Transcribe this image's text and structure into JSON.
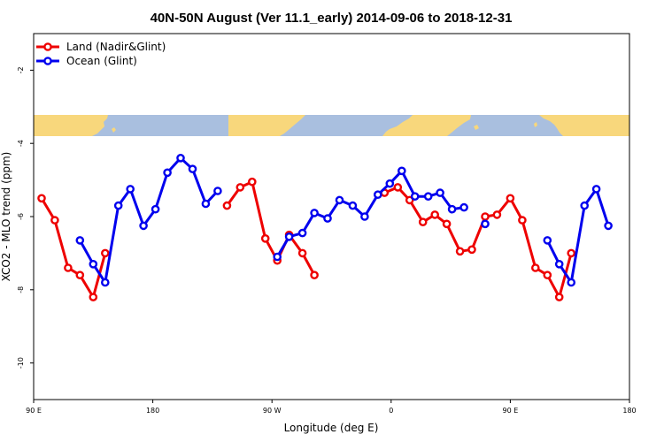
{
  "chart_data": {
    "type": "line",
    "title": "40N-50N August (Ver 11.1_early)   2014-09-06 to 2018-12-31",
    "xlabel": "Longitude (deg E)",
    "ylabel": "XCO2 - MLO trend (ppm)",
    "xlim": [
      90,
      540
    ],
    "ylim": [
      -11,
      -1
    ],
    "x_ticks": [
      {
        "value": 90,
        "label": "90 E"
      },
      {
        "value": 180,
        "label": "180"
      },
      {
        "value": 270,
        "label": "90 W"
      },
      {
        "value": 360,
        "label": "0"
      },
      {
        "value": 450,
        "label": "90 E"
      },
      {
        "value": 540,
        "label": "180"
      }
    ],
    "y_ticks": [
      {
        "value": -2,
        "label": "-2"
      },
      {
        "value": -4,
        "label": "-4"
      },
      {
        "value": -6,
        "label": "-6"
      },
      {
        "value": -8,
        "label": "-8"
      },
      {
        "value": -10,
        "label": "-10"
      }
    ],
    "legend": {
      "position": "top-left"
    },
    "map_strip": {
      "y_range": [
        -3.8,
        -3.2
      ],
      "ocean_color": "#a9bfdf",
      "land_color": "#f8d77c"
    },
    "series": [
      {
        "name": "Land (Nadir&Glint)",
        "color": "#ee0000",
        "segments": [
          [
            [
              96,
              -5.5
            ],
            [
              106,
              -6.1
            ],
            [
              116,
              -7.4
            ],
            [
              125,
              -7.6
            ],
            [
              135,
              -8.2
            ],
            [
              144,
              -7.0
            ]
          ],
          [
            [
              236,
              -5.7
            ],
            [
              246,
              -5.2
            ],
            [
              255,
              -5.05
            ],
            [
              265,
              -6.6
            ],
            [
              274,
              -7.2
            ],
            [
              283,
              -6.5
            ],
            [
              293,
              -7.0
            ],
            [
              302,
              -7.6
            ]
          ],
          [
            [
              355,
              -5.35
            ],
            [
              365,
              -5.2
            ],
            [
              374,
              -5.55
            ],
            [
              384,
              -6.15
            ],
            [
              393,
              -5.95
            ],
            [
              402,
              -6.2
            ],
            [
              412,
              -6.95
            ],
            [
              421,
              -6.9
            ],
            [
              431,
              -6.0
            ],
            [
              440,
              -5.95
            ],
            [
              450,
              -5.5
            ],
            [
              459,
              -6.1
            ],
            [
              469,
              -7.4
            ],
            [
              478,
              -7.6
            ],
            [
              487,
              -8.2
            ],
            [
              496,
              -7.0
            ]
          ]
        ]
      },
      {
        "name": "Ocean (Glint)",
        "color": "#0000ee",
        "segments": [
          [
            [
              125,
              -6.65
            ],
            [
              135,
              -7.3
            ],
            [
              144,
              -7.8
            ],
            [
              154,
              -5.7
            ],
            [
              163,
              -5.25
            ],
            [
              173,
              -6.25
            ],
            [
              182,
              -5.8
            ],
            [
              191,
              -4.8
            ],
            [
              201,
              -4.4
            ],
            [
              210,
              -4.7
            ],
            [
              220,
              -5.65
            ],
            [
              229,
              -5.3
            ]
          ],
          [
            [
              274,
              -7.1
            ],
            [
              283,
              -6.55
            ],
            [
              293,
              -6.45
            ],
            [
              302,
              -5.9
            ],
            [
              312,
              -6.05
            ],
            [
              321,
              -5.55
            ],
            [
              331,
              -5.7
            ],
            [
              340,
              -6.0
            ],
            [
              350,
              -5.4
            ],
            [
              359,
              -5.1
            ],
            [
              368,
              -4.75
            ],
            [
              378,
              -5.45
            ],
            [
              388,
              -5.45
            ],
            [
              397,
              -5.35
            ],
            [
              406,
              -5.8
            ],
            [
              415,
              -5.75
            ]
          ],
          [
            [
              431,
              -6.2
            ]
          ],
          [
            [
              478,
              -6.65
            ],
            [
              487,
              -7.3
            ],
            [
              496,
              -7.8
            ],
            [
              506,
              -5.7
            ],
            [
              515,
              -5.25
            ],
            [
              524,
              -6.25
            ]
          ]
        ]
      }
    ]
  }
}
